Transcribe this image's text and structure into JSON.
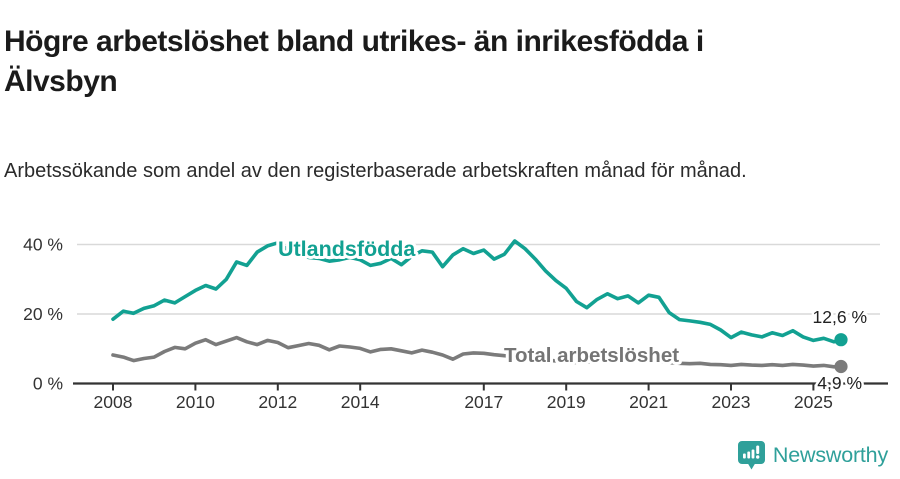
{
  "title": "Högre arbetslöshet bland utrikes- än inrikesfödda i Älvsbyn",
  "subtitle": "Arbetssökande som andel av den registerbaserade arbetskraften månad för månad.",
  "branding": {
    "logo_text": "Newsworthy",
    "brand_color": "#2fa09a"
  },
  "colors": {
    "foreign_born_line": "#12a192",
    "total_line": "#7b7b7b",
    "axis": "#333333",
    "gridline": "#d9d9d9",
    "annotation_text": "#222222"
  },
  "chart_data": {
    "type": "line",
    "title": "Högre arbetslöshet bland utrikes- än inrikesfödda i Älvsbyn",
    "subtitle": "Arbetssökande som andel av den registerbaserade arbetskraften månad för månad.",
    "xlabel": "",
    "ylabel": "",
    "grid": "horizontal",
    "legend_position": "inline-line-labels",
    "xlim": [
      2007.7,
      2026.3
    ],
    "ylim": [
      0,
      44
    ],
    "x_tick_years": [
      2008,
      2010,
      2012,
      2014,
      2017,
      2019,
      2021,
      2023,
      2025
    ],
    "x_tick_labels": [
      "2008",
      "2010",
      "2012",
      "2014",
      "2017",
      "2019",
      "2021",
      "2023",
      "2025"
    ],
    "y_ticks": [
      {
        "label": "0 %",
        "value": 0
      },
      {
        "label": "20 %",
        "value": 20
      },
      {
        "label": "40 %",
        "value": 40
      }
    ],
    "x": [
      2008.0,
      2008.25,
      2008.5,
      2008.75,
      2009.0,
      2009.25,
      2009.5,
      2009.75,
      2010.0,
      2010.25,
      2010.5,
      2010.75,
      2011.0,
      2011.25,
      2011.5,
      2011.75,
      2012.0,
      2012.25,
      2012.5,
      2012.75,
      2013.0,
      2013.25,
      2013.5,
      2013.75,
      2014.0,
      2014.25,
      2014.5,
      2014.75,
      2015.0,
      2015.25,
      2015.5,
      2015.75,
      2016.0,
      2016.25,
      2016.5,
      2016.75,
      2017.0,
      2017.25,
      2017.5,
      2017.75,
      2018.0,
      2018.25,
      2018.5,
      2018.75,
      2019.0,
      2019.25,
      2019.5,
      2019.75,
      2020.0,
      2020.25,
      2020.5,
      2020.75,
      2021.0,
      2021.25,
      2021.5,
      2021.75,
      2022.0,
      2022.25,
      2022.5,
      2022.75,
      2023.0,
      2023.25,
      2023.5,
      2023.75,
      2024.0,
      2024.25,
      2024.5,
      2024.75,
      2025.0,
      2025.25,
      2025.5,
      2025.67
    ],
    "series": [
      {
        "name": "Utlandsfödda",
        "color": "#12a192",
        "end_label": "12,6 %",
        "end_value": 12.6,
        "values": [
          18.5,
          20.8,
          20.2,
          21.6,
          22.4,
          24.0,
          23.2,
          25.0,
          26.8,
          28.2,
          27.2,
          30.0,
          35.0,
          34.0,
          37.8,
          39.6,
          40.5,
          38.5,
          37.2,
          36.3,
          36.0,
          35.2,
          35.6,
          36.3,
          35.6,
          34.0,
          34.6,
          36.0,
          34.2,
          36.6,
          38.2,
          37.8,
          33.6,
          37.0,
          38.8,
          37.4,
          38.4,
          35.8,
          37.2,
          41.0,
          38.8,
          35.8,
          32.4,
          29.6,
          27.4,
          23.6,
          21.8,
          24.2,
          25.8,
          24.4,
          25.2,
          23.2,
          25.4,
          24.8,
          20.4,
          18.4,
          18.0,
          17.6,
          17.0,
          15.4,
          13.2,
          14.8,
          14.0,
          13.4,
          14.6,
          13.8,
          15.2,
          13.4,
          12.4,
          13.0,
          12.0,
          12.6
        ]
      },
      {
        "name": "Total arbetslöshet",
        "color": "#7b7b7b",
        "end_label": "4,9 %",
        "end_value": 4.9,
        "values": [
          8.2,
          7.6,
          6.6,
          7.2,
          7.6,
          9.2,
          10.4,
          10.0,
          11.6,
          12.6,
          11.2,
          12.2,
          13.2,
          12.0,
          11.2,
          12.4,
          11.8,
          10.3,
          10.9,
          11.5,
          11.0,
          9.7,
          10.8,
          10.5,
          10.1,
          9.1,
          9.8,
          10.0,
          9.4,
          8.8,
          9.6,
          9.0,
          8.2,
          7.0,
          8.5,
          8.8,
          8.7,
          8.3,
          8.0,
          7.8,
          7.5,
          7.1,
          6.8,
          6.5,
          6.3,
          6.0,
          6.2,
          6.5,
          7.0,
          7.4,
          7.2,
          6.8,
          6.5,
          6.3,
          6.0,
          5.8,
          5.7,
          5.8,
          5.5,
          5.4,
          5.2,
          5.5,
          5.3,
          5.2,
          5.4,
          5.2,
          5.5,
          5.3,
          5.0,
          5.2,
          4.8,
          4.9
        ]
      }
    ]
  }
}
